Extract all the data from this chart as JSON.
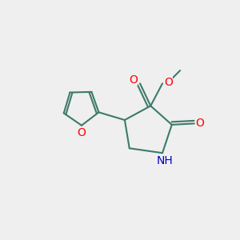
{
  "bg_color": "#efefef",
  "bond_color": "#3d7a6a",
  "bond_width": 1.5,
  "atom_colors": {
    "O": "#ff0000",
    "N": "#0000cc",
    "C": "#000000"
  }
}
